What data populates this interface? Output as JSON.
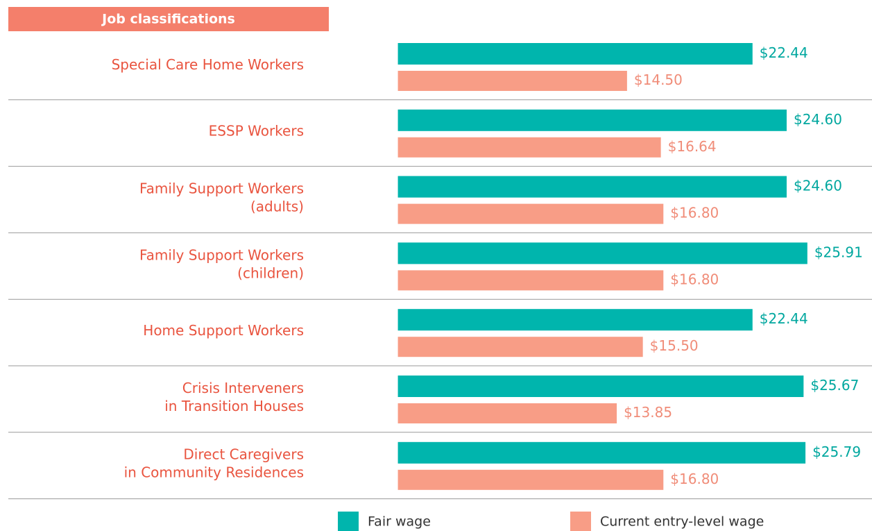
{
  "chart_data": {
    "type": "barh",
    "header": "Job classifications",
    "categories": [
      "Special Care Home Workers",
      "ESSP Workers",
      "Family Support Workers\n(adults)",
      "Family Support Workers\n(children)",
      "Home Support Workers",
      "Crisis Interveners\nin Transition Houses",
      "Direct Caregivers\nin Community Residences"
    ],
    "series": [
      {
        "name": "Fair wage",
        "color": "#00b5ad",
        "label_color": "#00a79f",
        "values": [
          22.44,
          24.6,
          24.6,
          25.91,
          22.44,
          25.67,
          25.79
        ],
        "value_labels": [
          "$22.44",
          "$24.60",
          "$24.60",
          "$25.91",
          "$22.44",
          "$25.67",
          "$25.79"
        ]
      },
      {
        "name": "Current entry-level wage",
        "color": "#f89d86",
        "label_color": "#f08c78",
        "values": [
          14.5,
          16.64,
          16.8,
          16.8,
          15.5,
          13.85,
          16.8
        ],
        "value_labels": [
          "$14.50",
          "$16.64",
          "$16.80",
          "$16.80",
          "$15.50",
          "$13.85",
          "$16.80"
        ]
      }
    ],
    "xlim": [
      -3.8,
      30
    ]
  }
}
